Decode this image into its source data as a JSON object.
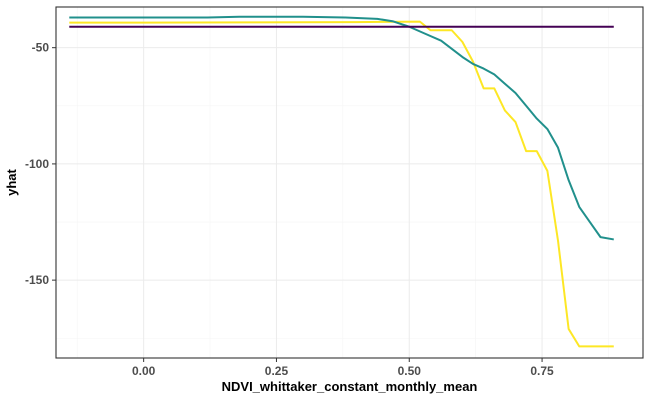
{
  "chart_data": {
    "type": "line",
    "title": "",
    "xlabel": "NDVI_whittaker_constant_monthly_mean",
    "ylabel": "yhat",
    "xlim": [
      -0.165,
      0.94
    ],
    "ylim": [
      -183.5,
      -32.5
    ],
    "x_ticks": [
      0.0,
      0.25,
      0.5,
      0.75
    ],
    "x_tick_labels": [
      "0.00",
      "0.25",
      "0.50",
      "0.75"
    ],
    "y_ticks": [
      -50,
      -100,
      -150
    ],
    "y_tick_labels": [
      "-50",
      "-100",
      "-150"
    ],
    "grid": true,
    "legend": "none",
    "series": [
      {
        "color": "#fde725",
        "points": [
          [
            -0.14,
            -39.2
          ],
          [
            0.0,
            -39.2
          ],
          [
            0.2,
            -39.1
          ],
          [
            0.4,
            -39.0
          ],
          [
            0.52,
            -38.8
          ],
          [
            0.54,
            -42.5
          ],
          [
            0.56,
            -42.5
          ],
          [
            0.58,
            -42.5
          ],
          [
            0.6,
            -47.5
          ],
          [
            0.62,
            -56.0
          ],
          [
            0.64,
            -67.5
          ],
          [
            0.66,
            -67.5
          ],
          [
            0.68,
            -77.0
          ],
          [
            0.7,
            -82.0
          ],
          [
            0.72,
            -94.5
          ],
          [
            0.74,
            -94.5
          ],
          [
            0.76,
            -103.0
          ],
          [
            0.78,
            -133.0
          ],
          [
            0.8,
            -171.0
          ],
          [
            0.82,
            -178.5
          ],
          [
            0.86,
            -178.5
          ],
          [
            0.885,
            -178.5
          ]
        ]
      },
      {
        "color": "#21908c",
        "points": [
          [
            -0.14,
            -37.0
          ],
          [
            0.0,
            -37.0
          ],
          [
            0.12,
            -37.0
          ],
          [
            0.18,
            -36.7
          ],
          [
            0.3,
            -36.7
          ],
          [
            0.38,
            -37.0
          ],
          [
            0.44,
            -37.6
          ],
          [
            0.47,
            -38.7
          ],
          [
            0.5,
            -41.0
          ],
          [
            0.53,
            -44.0
          ],
          [
            0.56,
            -47.0
          ],
          [
            0.58,
            -50.5
          ],
          [
            0.6,
            -54.0
          ],
          [
            0.62,
            -57.0
          ],
          [
            0.64,
            -59.0
          ],
          [
            0.66,
            -61.5
          ],
          [
            0.68,
            -65.5
          ],
          [
            0.7,
            -69.5
          ],
          [
            0.72,
            -75.0
          ],
          [
            0.74,
            -80.5
          ],
          [
            0.76,
            -85.0
          ],
          [
            0.78,
            -93.0
          ],
          [
            0.8,
            -107.0
          ],
          [
            0.82,
            -118.5
          ],
          [
            0.84,
            -125.0
          ],
          [
            0.86,
            -131.5
          ],
          [
            0.885,
            -132.5
          ]
        ]
      },
      {
        "color": "#440154",
        "points": [
          [
            -0.14,
            -41.0
          ],
          [
            0.885,
            -41.0
          ]
        ]
      }
    ]
  }
}
